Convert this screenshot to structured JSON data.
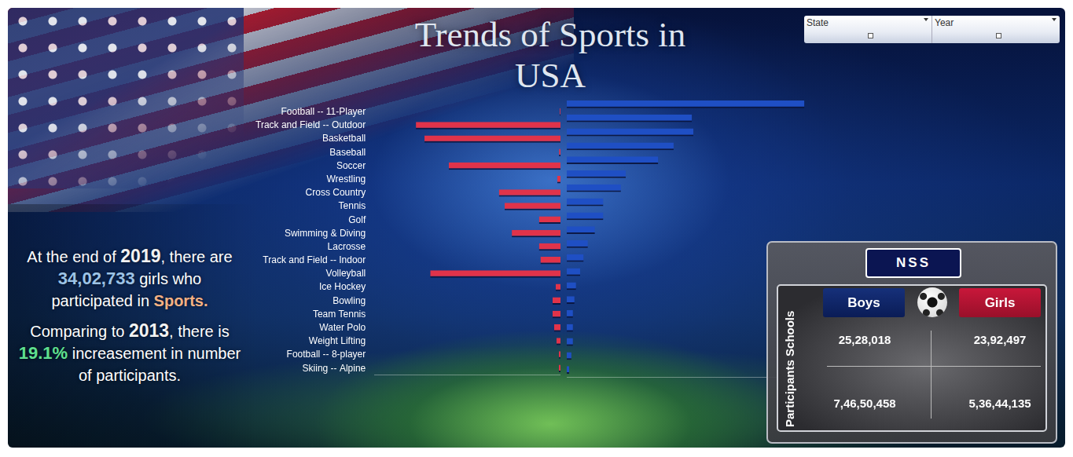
{
  "title": "Trends of Sports in USA",
  "filters": [
    "State",
    "Year"
  ],
  "summary": {
    "sentence1": [
      "At the end of ",
      "2019",
      ", there are ",
      "34,02,733",
      " girls who participated in ",
      "Sports."
    ],
    "sentence2": [
      "Comparing to ",
      "2013",
      ", there is ",
      "19.1%",
      " increasement in number of participants."
    ]
  },
  "nss_panel": {
    "title": "NSS",
    "columns": [
      "Boys",
      "Girls"
    ],
    "row_label": "Participants Schools",
    "rows": [
      [
        "25,28,018",
        "23,92,497"
      ],
      [
        "7,46,50,458",
        "5,36,44,135"
      ]
    ]
  },
  "chart_data": [
    {
      "type": "bar",
      "orientation": "horizontal",
      "color": "#e0334a",
      "grid": false,
      "tick_labels": "y",
      "categories": [
        "Football -- 11-Player",
        "Track and Field -- Outdoor",
        "Basketball",
        "Baseball",
        "Soccer",
        "Wrestling",
        "Cross Country",
        "Tennis",
        "Golf",
        "Swimming & Diving",
        "Lacrosse",
        "Track and Field -- Indoor",
        "Volleyball",
        "Ice Hockey",
        "Bowling",
        "Team Tennis",
        "Water Polo",
        "Weight Lifting",
        "Football -- 8-player",
        "Skiing -- Alpine"
      ],
      "values": [
        50000,
        10100000,
        9500000,
        100000,
        7800000,
        220000,
        4300000,
        3900000,
        1500000,
        3400000,
        1500000,
        1400000,
        9100000,
        330000,
        550000,
        550000,
        440000,
        280000,
        110000,
        110000
      ],
      "xlim": [
        0,
        13000000
      ]
    },
    {
      "type": "bar",
      "orientation": "horizontal",
      "color": "#1f4fc4",
      "grid": false,
      "tick_labels": false,
      "categories": [
        "Football -- 11-Player",
        "Track and Field -- Outdoor",
        "Basketball",
        "Baseball",
        "Soccer",
        "Wrestling",
        "Cross Country",
        "Tennis",
        "Golf",
        "Swimming & Diving",
        "Lacrosse",
        "Track and Field -- Indoor",
        "Volleyball",
        "Ice Hockey",
        "Bowling",
        "Team Tennis",
        "Water Polo",
        "Weight Lifting",
        "Football -- 8-player",
        "Skiing -- Alpine"
      ],
      "values": [
        16900000,
        8900000,
        9000000,
        7600000,
        6500000,
        4200000,
        3850000,
        2600000,
        2600000,
        2000000,
        1500000,
        1200000,
        950000,
        660000,
        550000,
        440000,
        440000,
        440000,
        330000,
        170000
      ],
      "xlim": [
        0,
        18000000
      ]
    }
  ]
}
